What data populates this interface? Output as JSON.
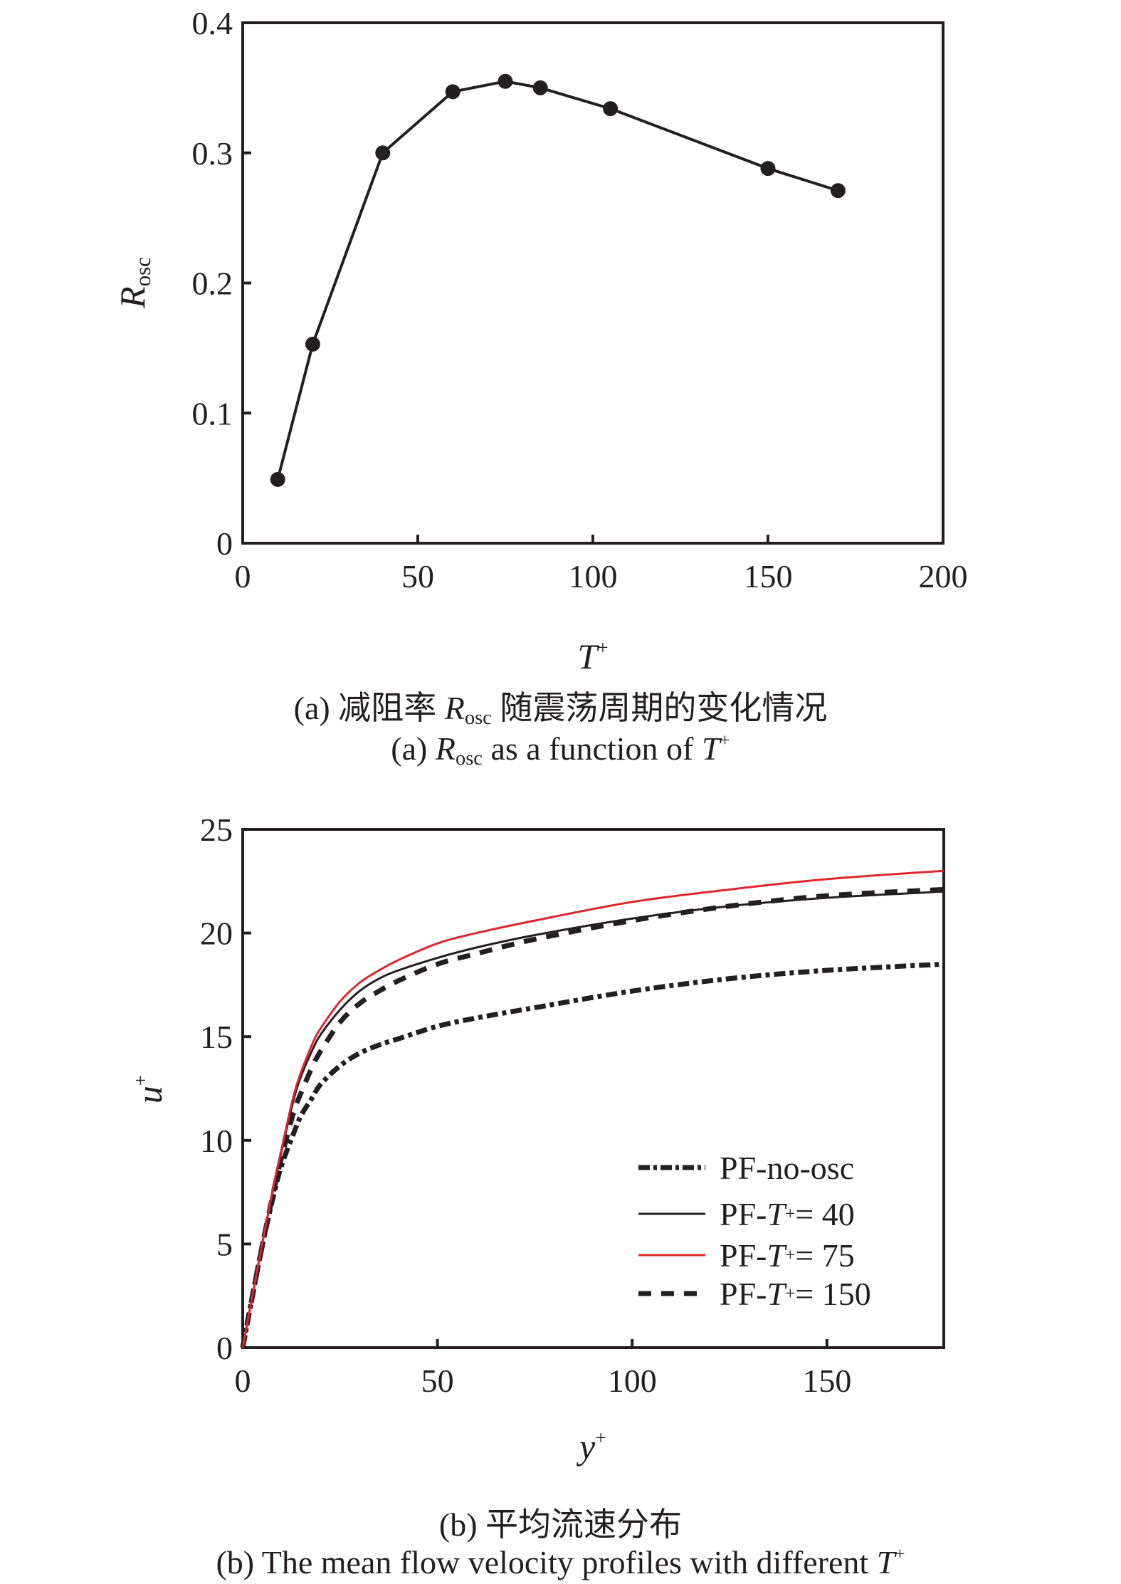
{
  "figure": {
    "panel_a": {
      "y_axis_title": {
        "main": "R",
        "sub": "osc"
      },
      "x_axis_title": {
        "main": "T",
        "sup": "+"
      },
      "caption_cn": {
        "prefix": "(a) 减阻率 ",
        "var": "R",
        "sub": "osc",
        "suffix": " 随震荡周期的变化情况"
      },
      "caption_en": {
        "prefix": "(a) ",
        "var": "R",
        "sub": "osc",
        "middle": " as a function of ",
        "var2": "T",
        "sup": "+"
      }
    },
    "panel_b": {
      "y_axis_title": {
        "main": "u",
        "sup": "+"
      },
      "x_axis_title": {
        "main": "y",
        "sup": "+"
      },
      "caption_cn": "(b) 平均流速分布",
      "caption_en": {
        "text": "(b) The mean flow velocity profiles with different ",
        "var": "T",
        "sup": "+"
      },
      "legend": [
        {
          "prefix": "PF-no-osc",
          "var": "",
          "suffix": ""
        },
        {
          "prefix": "PF-",
          "var": "T",
          "suffix": " = 40"
        },
        {
          "prefix": "PF-",
          "var": "T",
          "suffix": " = 75"
        },
        {
          "prefix": "PF-",
          "var": "T",
          "suffix": " = 150"
        }
      ]
    }
  },
  "chart_data": [
    {
      "type": "line",
      "title": "(a) Rosc as a function of T+",
      "xlabel": "T+",
      "ylabel": "Rosc",
      "xlim": [
        0,
        200
      ],
      "ylim": [
        0,
        0.4
      ],
      "xticks": [
        0,
        50,
        100,
        150,
        200
      ],
      "yticks": [
        0,
        0.1,
        0.2,
        0.3,
        0.4
      ],
      "xtick_labels": [
        "0",
        "50",
        "100",
        "150",
        "200"
      ],
      "ytick_labels": [
        "0",
        "0.1",
        "0.2",
        "0.3",
        "0.4"
      ],
      "grid": false,
      "markers": "filled-circle",
      "series": [
        {
          "name": "Rosc",
          "color": "#231f20",
          "x": [
            10,
            20,
            40,
            60,
            75,
            85,
            105,
            150,
            170
          ],
          "y": [
            0.049,
            0.153,
            0.3,
            0.347,
            0.355,
            0.35,
            0.334,
            0.288,
            0.271
          ]
        }
      ]
    },
    {
      "type": "line",
      "title": "(b) The mean flow velocity profiles with different T+",
      "xlabel": "y+",
      "ylabel": "u+",
      "xlim": [
        0,
        180
      ],
      "ylim": [
        0,
        25
      ],
      "xticks": [
        0,
        50,
        100,
        150
      ],
      "yticks": [
        0,
        5,
        10,
        15,
        20,
        25
      ],
      "xtick_labels": [
        "0",
        "50",
        "100",
        "150"
      ],
      "ytick_labels": [
        "0",
        "5",
        "10",
        "15",
        "20",
        "25"
      ],
      "grid": false,
      "legend_position": "lower right",
      "x": [
        0,
        2,
        5,
        8,
        10,
        13,
        15,
        18,
        20,
        25,
        30,
        35,
        40,
        50,
        60,
        75,
        100,
        125,
        150,
        180
      ],
      "series": [
        {
          "name": "PF-no-osc",
          "color": "#231f20",
          "style": "dash-dot",
          "y": [
            0,
            2.0,
            4.9,
            7.4,
            8.8,
            10.3,
            11.2,
            12.1,
            12.7,
            13.6,
            14.2,
            14.6,
            14.9,
            15.5,
            15.9,
            16.4,
            17.2,
            17.8,
            18.2,
            18.5
          ]
        },
        {
          "name": "PF-T+ = 40",
          "color": "#231f20",
          "style": "solid",
          "y": [
            0,
            2.0,
            5.0,
            7.8,
            9.5,
            11.9,
            13.1,
            14.4,
            15.1,
            16.3,
            17.2,
            17.8,
            18.2,
            18.8,
            19.3,
            19.9,
            20.7,
            21.3,
            21.7,
            22.0
          ]
        },
        {
          "name": "PF-T+ = 75",
          "color": "#e0262d",
          "style": "solid",
          "y": [
            0,
            2.0,
            5.0,
            7.9,
            9.6,
            12.1,
            13.3,
            14.7,
            15.4,
            16.7,
            17.6,
            18.2,
            18.7,
            19.5,
            20.0,
            20.6,
            21.5,
            22.1,
            22.6,
            23.0
          ]
        },
        {
          "name": "PF-T+ = 150",
          "color": "#231f20",
          "style": "dashed",
          "y": [
            0,
            2.0,
            4.9,
            7.6,
            9.2,
            11.3,
            12.3,
            13.6,
            14.3,
            15.7,
            16.6,
            17.2,
            17.7,
            18.5,
            19.0,
            19.7,
            20.6,
            21.3,
            21.8,
            22.1
          ]
        }
      ]
    }
  ]
}
